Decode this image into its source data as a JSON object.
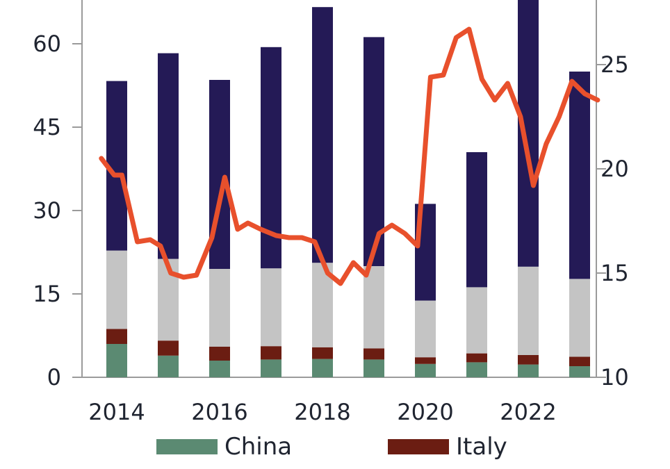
{
  "chart_data": {
    "type": "bar",
    "stacked": true,
    "categories": [
      "2014",
      "2015",
      "2016",
      "2017",
      "2018",
      "2019",
      "2020",
      "2021",
      "2022",
      "2023"
    ],
    "x_tick_labels": [
      "2014",
      "2016",
      "2018",
      "2020",
      "2022"
    ],
    "y_left": {
      "ylim": [
        0,
        68
      ],
      "ticks": [
        0,
        15,
        30,
        45,
        60
      ]
    },
    "y_right": {
      "ylim": [
        10,
        28
      ],
      "ticks": [
        10,
        15,
        20,
        25
      ]
    },
    "series": [
      {
        "name": "China",
        "color": "#5b8a72",
        "values": [
          6.0,
          3.9,
          3.0,
          3.2,
          3.3,
          3.2,
          2.4,
          2.7,
          2.3,
          2.0
        ]
      },
      {
        "name": "Italy",
        "color": "#6b1d12",
        "values": [
          2.7,
          2.7,
          2.5,
          2.4,
          2.1,
          2.0,
          1.2,
          1.6,
          1.7,
          1.7
        ]
      },
      {
        "name": "",
        "color": "#c4c4c4",
        "values": [
          14.1,
          14.7,
          14.0,
          14.0,
          15.2,
          14.8,
          10.2,
          11.9,
          15.9,
          14.0
        ]
      },
      {
        "name": "",
        "color": "#241a56",
        "values": [
          30.5,
          37.0,
          34.0,
          39.8,
          46.0,
          41.2,
          17.4,
          24.3,
          49.0,
          37.3
        ]
      }
    ],
    "line": {
      "name": "",
      "axis": "right",
      "color": "#e8502c",
      "x": [
        2013.7,
        2013.95,
        2014.1,
        2014.4,
        2014.65,
        2014.85,
        2015.05,
        2015.3,
        2015.55,
        2015.85,
        2016.1,
        2016.35,
        2016.55,
        2016.8,
        2017.1,
        2017.35,
        2017.6,
        2017.85,
        2018.1,
        2018.35,
        2018.6,
        2018.85,
        2019.1,
        2019.35,
        2019.6,
        2019.85,
        2020.1,
        2020.35,
        2020.6,
        2020.85,
        2021.1,
        2021.35,
        2021.6,
        2021.85,
        2022.1,
        2022.35,
        2022.6,
        2022.85,
        2023.1,
        2023.35
      ],
      "y": [
        20.5,
        19.7,
        19.7,
        16.5,
        16.6,
        16.3,
        15.0,
        14.8,
        14.9,
        16.7,
        19.6,
        17.1,
        17.4,
        17.1,
        16.8,
        16.7,
        16.7,
        16.5,
        15.0,
        14.5,
        15.5,
        14.9,
        16.9,
        17.3,
        16.9,
        16.3,
        24.4,
        24.5,
        26.3,
        26.7,
        24.3,
        23.3,
        24.1,
        22.5,
        19.2,
        21.2,
        22.5,
        24.2,
        23.6,
        23.3
      ]
    }
  }
}
